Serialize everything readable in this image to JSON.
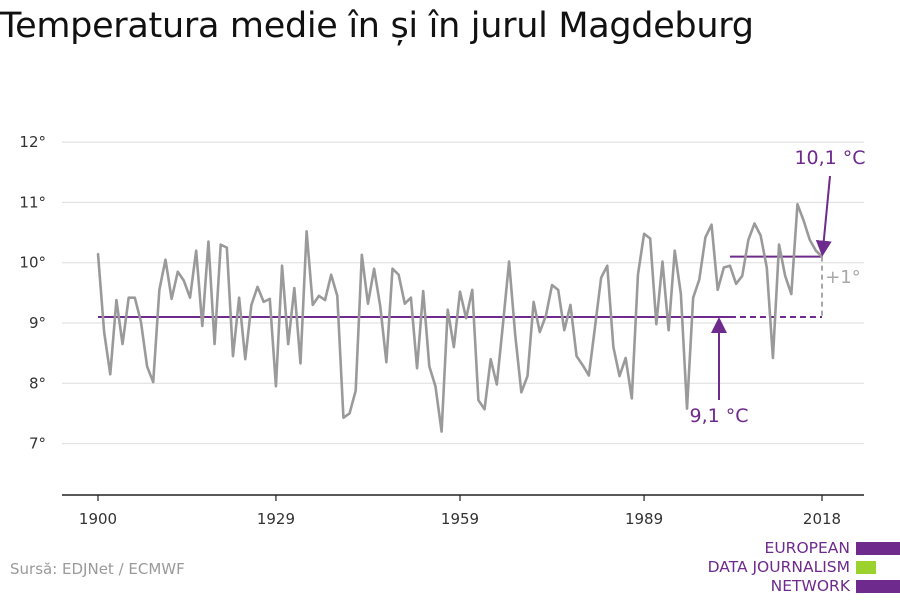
{
  "title": "Temperatura medie în și în jurul Magdeburg",
  "source": "Sursă: EDJNet / ECMWF",
  "logo": {
    "lines": [
      "EUROPEAN",
      "DATA JOURNALISM",
      "NETWORK"
    ],
    "colors": [
      "#6e2a8c",
      "#9bd22d",
      "#6e2a8c"
    ]
  },
  "colors": {
    "series": "#9a9a9a",
    "accent": "#6e2a8c",
    "diff": "#a8a8a8",
    "grid": "#dddddd",
    "axis": "#222222"
  },
  "chart_data": {
    "type": "line",
    "title": "Temperatura medie în și în jurul Magdeburg",
    "xlabel": "",
    "ylabel": "",
    "x_ticks": [
      1900,
      1929,
      1959,
      1989,
      2018
    ],
    "y_ticks": [
      7,
      8,
      9,
      10,
      11,
      12
    ],
    "y_tick_labels": [
      "7°",
      "8°",
      "9°",
      "10°",
      "11°",
      "12°"
    ],
    "xlim": [
      1894,
      2024
    ],
    "ylim": [
      6.1,
      12.6
    ],
    "grid": true,
    "series": [
      {
        "x": [
          1900,
          1901,
          1902,
          1903,
          1904,
          1905,
          1906,
          1907,
          1908,
          1909,
          1910,
          1911,
          1912,
          1913,
          1914,
          1915,
          1916,
          1917,
          1918,
          1919,
          1920,
          1921,
          1922,
          1923,
          1924,
          1925,
          1926,
          1927,
          1928,
          1929,
          1930,
          1931,
          1932,
          1933,
          1934,
          1935,
          1936,
          1937,
          1938,
          1939,
          1940,
          1941,
          1942,
          1943,
          1944,
          1945,
          1946,
          1947,
          1948,
          1949,
          1950,
          1951,
          1952,
          1953,
          1954,
          1955,
          1956,
          1957,
          1958,
          1959,
          1960,
          1961,
          1962,
          1963,
          1964,
          1965,
          1966,
          1967,
          1968,
          1969,
          1970,
          1971,
          1972,
          1973,
          1974,
          1975,
          1976,
          1977,
          1978,
          1979,
          1980,
          1981,
          1982,
          1983,
          1984,
          1985,
          1986,
          1987,
          1988,
          1989,
          1990,
          1991,
          1992,
          1993,
          1994,
          1995,
          1996,
          1997,
          1998,
          1999,
          2000,
          2001,
          2002,
          2003,
          2004,
          2005,
          2006,
          2007,
          2008,
          2009,
          2010,
          2011,
          2012,
          2013,
          2014,
          2015,
          2016,
          2017,
          2018
        ],
        "values": [
          10.15,
          8.85,
          8.15,
          9.38,
          8.65,
          9.42,
          9.42,
          9.02,
          8.28,
          8.02,
          9.55,
          10.05,
          9.4,
          9.85,
          9.7,
          9.42,
          10.2,
          8.95,
          10.35,
          8.65,
          10.3,
          10.25,
          8.45,
          9.42,
          8.4,
          9.3,
          9.6,
          9.35,
          9.4,
          7.95,
          9.95,
          8.65,
          9.58,
          8.33,
          10.52,
          9.3,
          9.45,
          9.38,
          9.8,
          9.45,
          7.43,
          7.5,
          7.88,
          10.13,
          9.32,
          9.9,
          9.28,
          8.35,
          9.9,
          9.8,
          9.32,
          9.42,
          8.25,
          9.53,
          8.28,
          7.95,
          7.2,
          9.22,
          8.6,
          9.52,
          9.08,
          9.55,
          7.72,
          7.57,
          8.4,
          7.98,
          8.98,
          10.02,
          8.8,
          7.85,
          8.12,
          9.35,
          8.85,
          9.12,
          9.63,
          9.55,
          8.88,
          9.3,
          8.45,
          8.3,
          8.13,
          8.93,
          9.75,
          9.95,
          8.6,
          8.12,
          8.42,
          7.75,
          9.8,
          10.48,
          10.4,
          8.98,
          10.02,
          8.88,
          10.2,
          9.48,
          7.58,
          9.42,
          9.72,
          10.42,
          10.63,
          9.55,
          9.92,
          9.95,
          9.65,
          9.78,
          10.38,
          10.65,
          10.45,
          9.92,
          8.42,
          10.3,
          9.78,
          9.48,
          10.97,
          10.7,
          10.38,
          10.2,
          10.1
        ]
      }
    ],
    "reference_lines": [
      {
        "value": 9.1,
        "label": "9,1 °C",
        "from": 1900,
        "to": 2018
      },
      {
        "value": 10.1,
        "label": "10,1 °C",
        "from": 2003,
        "to": 2018
      }
    ],
    "difference_label": "+1°"
  }
}
